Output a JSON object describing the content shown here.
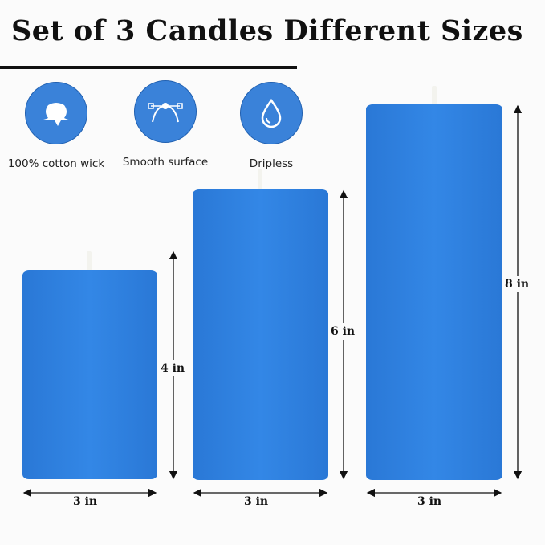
{
  "title": "Set of 3 Candles Different Sizes",
  "colors": {
    "candle": "#2f80df",
    "icon_bg": "#3a82d9",
    "text": "#111111"
  },
  "features": [
    {
      "icon": "cotton-icon",
      "label": "100% cotton wick"
    },
    {
      "icon": "bezier-curve-icon",
      "label": "Smooth surface"
    },
    {
      "icon": "water-drop-icon",
      "label": "Dripless"
    }
  ],
  "candles": [
    {
      "height_label": "4 in",
      "width_label": "3 in"
    },
    {
      "height_label": "6 in",
      "width_label": "3 in"
    },
    {
      "height_label": "8 in",
      "width_label": "3 in"
    }
  ]
}
